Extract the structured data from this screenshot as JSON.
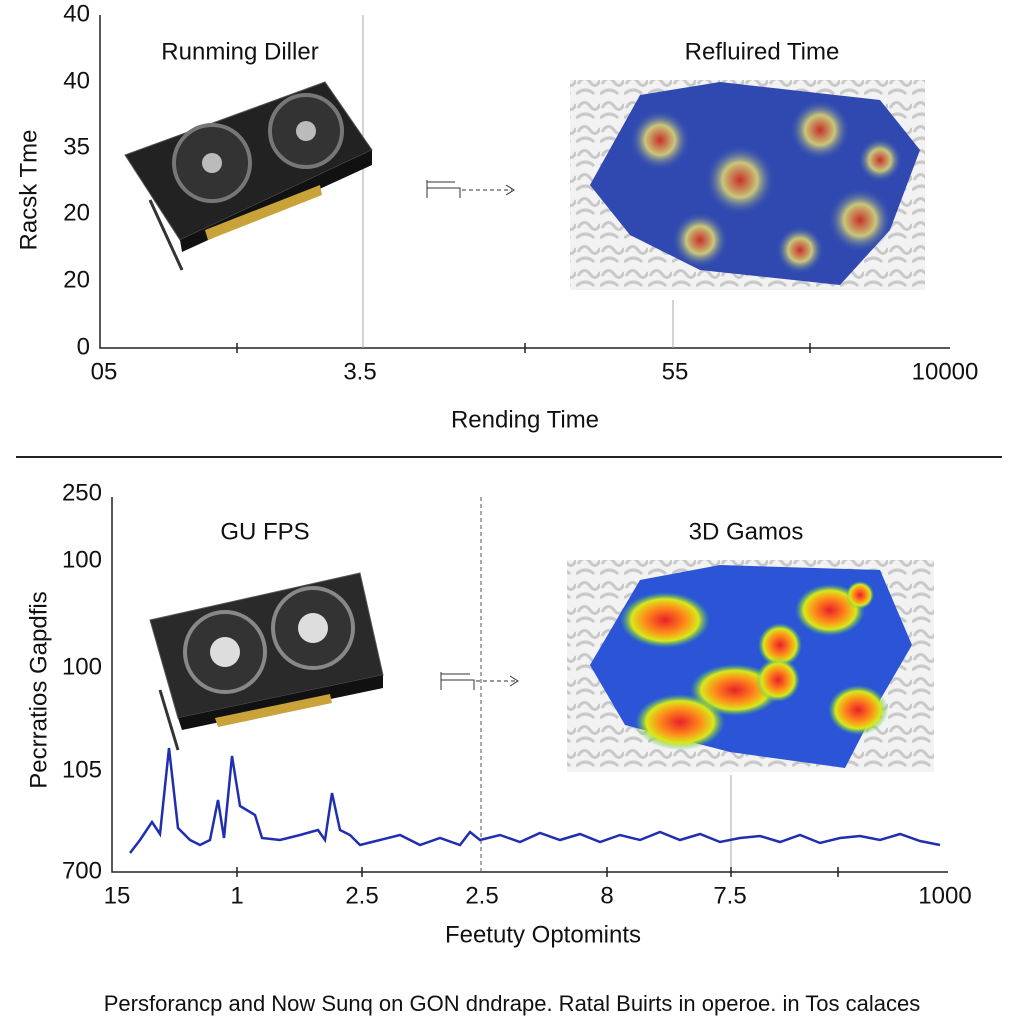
{
  "top_panel": {
    "title_left": "Runming Diller",
    "title_right": "Refluired Time",
    "y_label": "Racsk  Tme",
    "x_label": "Rending Time",
    "y_ticks": [
      "40",
      "40",
      "35",
      "20",
      "20",
      "0"
    ],
    "x_ticks": [
      "05",
      "3.5",
      "55",
      "10000"
    ]
  },
  "bottom_panel": {
    "title_left": "GU FPS",
    "title_right": "3D Gamos",
    "y_label": "Pecrratios Gapdfis",
    "x_label": "Feetuty Optomints",
    "y_ticks": [
      "250",
      "100",
      "100",
      "105",
      "700"
    ],
    "x_ticks": [
      "15",
      "1",
      "2.5",
      "2.5",
      "8",
      "7.5",
      "1000"
    ]
  },
  "caption": "Persforancp  and Now Sunq on GON dndrape. Ratal Buirts in operoe. in Tos calaces"
}
